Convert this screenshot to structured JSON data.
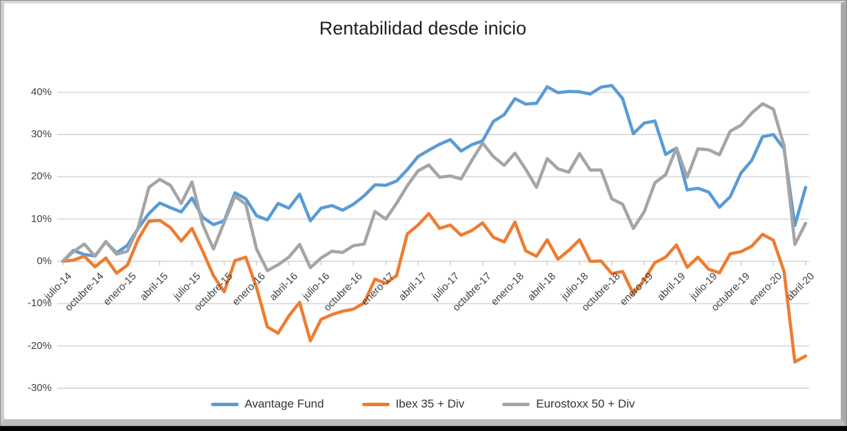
{
  "chart_data": {
    "type": "line",
    "title": "Rentabilidad desde inicio",
    "y_unit": "%",
    "ylim": [
      -30,
      40
    ],
    "grid": true,
    "legend_position": "bottom",
    "y_tick_labels": [
      "40%",
      "30%",
      "20%",
      "10%",
      "0%",
      "-10%",
      "-20%",
      "-30%"
    ],
    "y_tick_values": [
      40,
      30,
      20,
      10,
      0,
      -10,
      -20,
      -30
    ],
    "x_tick_labels": [
      "julio-14",
      "octubre-14",
      "enero-15",
      "abril-15",
      "julio-15",
      "octubre-15",
      "enero-16",
      "abril-16",
      "julio-16",
      "octubre-16",
      "enero-17",
      "abril-17",
      "julio-17",
      "octubre-17",
      "enero-18",
      "abril-18",
      "julio-18",
      "octubre-18",
      "enero-19",
      "abril-19",
      "julio-19",
      "octubre-19",
      "enero-20",
      "abril-20"
    ],
    "x_months_per_tick": 3,
    "x_point_count": 70,
    "gridline_color": "#d9d9d9",
    "series": [
      {
        "name": "Avantage Fund",
        "color": "#5B9BD5",
        "values": [
          0,
          2.6,
          1.6,
          1.3,
          4.6,
          2.0,
          3.8,
          7.8,
          11.3,
          13.8,
          12.7,
          11.7,
          15.0,
          10.4,
          8.7,
          9.6,
          16.2,
          14.8,
          10.8,
          9.8,
          13.7,
          12.6,
          15.9,
          9.6,
          12.6,
          13.2,
          12.1,
          13.5,
          15.5,
          18.1,
          18.0,
          19.0,
          21.7,
          24.8,
          26.3,
          27.7,
          28.8,
          26.1,
          27.6,
          28.5,
          33.1,
          34.7,
          38.5,
          37.2,
          37.4,
          41.3,
          39.9,
          40.2,
          40.1,
          39.6,
          41.2,
          41.6,
          38.5,
          30.2,
          32.7,
          33.2,
          25.3,
          26.8,
          16.9,
          17.3,
          16.4,
          12.8,
          15.3,
          20.9,
          23.9,
          29.5,
          30.0,
          26.6,
          8.5,
          17.5
        ]
      },
      {
        "name": "Ibex 35 + Div",
        "color": "#ED7D31",
        "values": [
          0,
          0.3,
          1.2,
          -1.3,
          0.8,
          -2.8,
          -0.9,
          5.2,
          9.5,
          9.7,
          8.0,
          4.8,
          7.8,
          2.4,
          -3.4,
          -7.2,
          0.2,
          1.0,
          -6.2,
          -15.5,
          -17.0,
          -12.9,
          -9.7,
          -18.8,
          -13.7,
          -12.6,
          -11.8,
          -11.3,
          -9.8,
          -4.2,
          -5.2,
          -3.4,
          6.5,
          8.6,
          11.3,
          7.8,
          8.6,
          6.2,
          7.3,
          9.1,
          5.7,
          4.6,
          9.3,
          2.5,
          1.2,
          5.1,
          0.5,
          2.6,
          5.1,
          0.0,
          0.1,
          -2.9,
          -2.4,
          -7.7,
          -4.4,
          -0.3,
          1.0,
          3.9,
          -1.4,
          1.0,
          -1.9,
          -2.7,
          1.8,
          2.3,
          3.6,
          6.4,
          5.0,
          -2.4,
          -23.8,
          -22.4
        ]
      },
      {
        "name": "Eurostoxx 50 + Div",
        "color": "#A5A5A5",
        "values": [
          0,
          2.3,
          4.1,
          1.2,
          4.7,
          1.7,
          2.4,
          8.0,
          17.5,
          19.4,
          18.0,
          13.7,
          18.8,
          8.7,
          2.9,
          9.3,
          15.4,
          13.5,
          2.9,
          -2.2,
          -0.8,
          1.0,
          4.0,
          -1.5,
          0.8,
          2.4,
          2.1,
          3.7,
          4.1,
          11.8,
          10.0,
          13.7,
          17.9,
          21.4,
          22.8,
          19.9,
          20.2,
          19.5,
          23.9,
          28.0,
          24.8,
          22.7,
          25.6,
          21.8,
          17.5,
          24.3,
          21.9,
          21.1,
          25.5,
          21.6,
          21.6,
          14.8,
          13.5,
          7.8,
          11.7,
          18.6,
          20.5,
          26.8,
          19.9,
          26.6,
          26.4,
          25.2,
          30.8,
          32.2,
          35.1,
          37.3,
          36.0,
          27.3,
          4.0,
          9.0
        ]
      }
    ]
  }
}
